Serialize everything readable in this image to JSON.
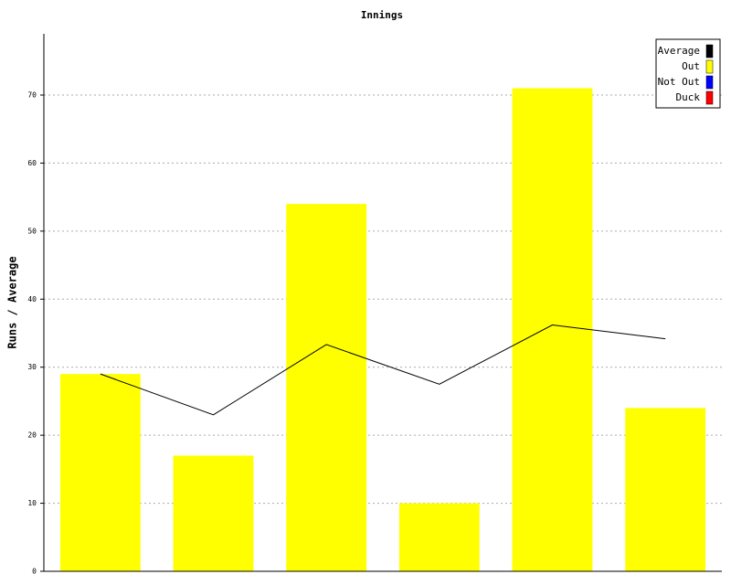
{
  "chart_data": {
    "type": "bar",
    "title": "Innings",
    "y_label": "Runs / Average",
    "categories": [
      null,
      null,
      null,
      null,
      null,
      null
    ],
    "series": [
      {
        "name": "Average",
        "type": "line",
        "color": "#000000",
        "values": [
          29,
          23,
          33.33,
          27.5,
          36.2,
          34.17
        ]
      },
      {
        "name": "Out",
        "type": "bar",
        "color": "#ffff00",
        "values": [
          29,
          17,
          54,
          10,
          71,
          24
        ]
      },
      {
        "name": "Not Out",
        "type": "bar",
        "color": "#0000ff",
        "values": [
          null,
          null,
          null,
          null,
          null,
          null
        ]
      },
      {
        "name": "Duck",
        "type": "bar",
        "color": "#ff0000",
        "values": [
          null,
          null,
          null,
          null,
          null,
          null
        ]
      }
    ],
    "ylim": [
      0,
      79
    ],
    "yticks": [
      0,
      10,
      20,
      30,
      40,
      50,
      60,
      70
    ],
    "grid": true,
    "legend": "top-right"
  }
}
